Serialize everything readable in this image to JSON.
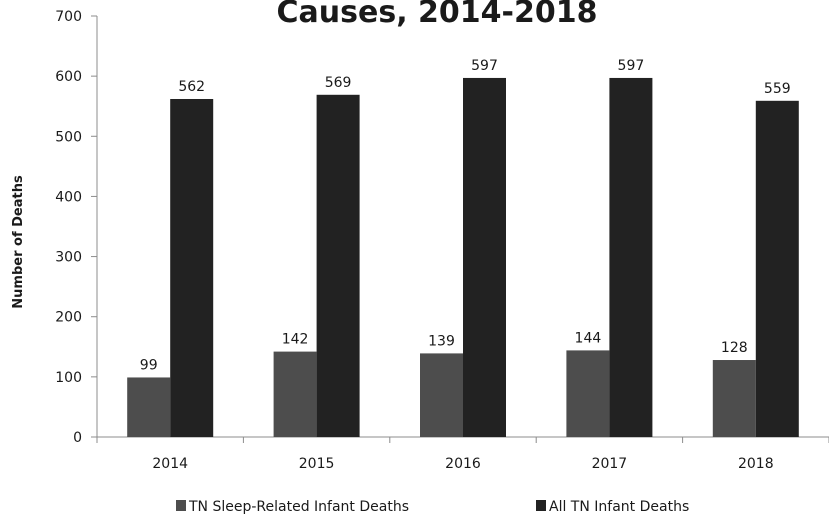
{
  "chart_data": {
    "type": "bar",
    "title": "Causes, 2014-2018",
    "xlabel": "",
    "ylabel": "Number of Deaths",
    "ylim": [
      0,
      700
    ],
    "yticks": [
      0,
      100,
      200,
      300,
      400,
      500,
      600,
      700
    ],
    "categories": [
      "2014",
      "2015",
      "2016",
      "2017",
      "2018"
    ],
    "series": [
      {
        "name": "TN Sleep-Related Infant Deaths",
        "color": "#4d4d4d",
        "values": [
          99,
          142,
          139,
          144,
          128
        ]
      },
      {
        "name": "All TN Infant Deaths",
        "color": "#222222",
        "values": [
          562,
          569,
          597,
          597,
          559
        ]
      }
    ],
    "legend_position": "bottom",
    "grid": false
  }
}
